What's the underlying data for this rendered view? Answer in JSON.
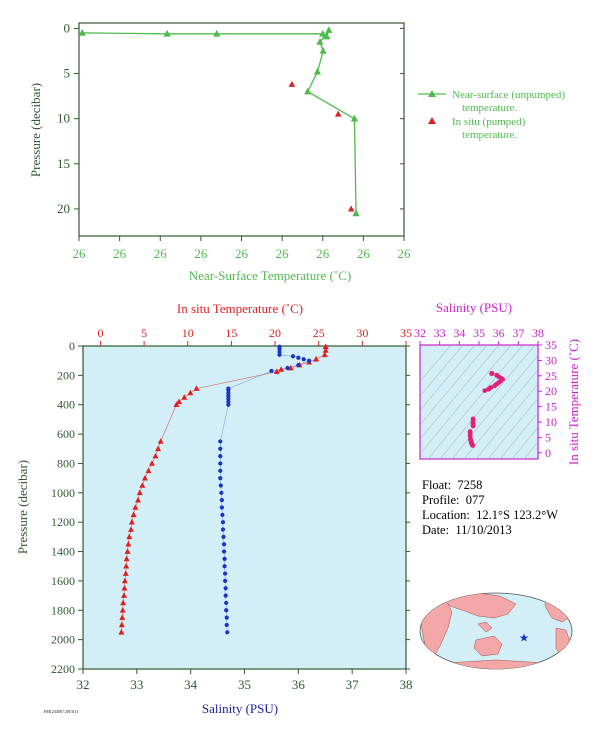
{
  "colors": {
    "green": "#4dbb4d",
    "red": "#e02020",
    "blue": "#1a33cc",
    "magenta": "#cc22cc",
    "navy": "#1a1a99",
    "axis_dark_green": "#2f5a2f",
    "plot_bg": "#d2eef6",
    "map_land": "#f4a7a7",
    "map_ocean": "#d2eef6"
  },
  "float_info": {
    "float_label": "Float:",
    "float_value": "7258",
    "profile_label": "Profile:",
    "profile_value": "077",
    "location_label": "Location:",
    "location_value": "12.1°S  123.2°W",
    "date_label": "Date:",
    "date_value": "11/10/2013"
  },
  "footer_text": "FM1234567 2013111",
  "map": {
    "marker_icon": "star-icon"
  },
  "chart_data": [
    {
      "id": "near-surface",
      "type": "line",
      "xlabel": "Near-Surface Temperature (˚C)",
      "ylabel": "Pressure (decibar)",
      "x_tick_labels": [
        "26",
        "26",
        "26",
        "26",
        "26",
        "26",
        "26",
        "26",
        "26"
      ],
      "xlim": [
        25.1,
        25.9
      ],
      "ylim": [
        23,
        -0.6
      ],
      "y_ticks": [
        0,
        5,
        10,
        15,
        20
      ],
      "y_inverted": true,
      "legend": {
        "placement": "right",
        "entries": [
          {
            "line1": "Near-surface (unpumped)",
            "line2": "temperature.",
            "color": "#4dbb4d",
            "marker": "triangle-line"
          },
          {
            "line1": "In situ (pumped)",
            "line2": "temperature.",
            "color": "#e02020",
            "marker": "triangle"
          }
        ]
      },
      "series": [
        {
          "name": "Near-surface (unpumped) temperature.",
          "color": "#4dbb4d",
          "points": [
            [
              25.108,
              0.5
            ],
            [
              25.317,
              0.6
            ],
            [
              25.439,
              0.6
            ],
            [
              25.7,
              0.6
            ],
            [
              25.71,
              0.9
            ],
            [
              25.715,
              0.2
            ],
            [
              25.693,
              1.5
            ],
            [
              25.701,
              2.5
            ],
            [
              25.687,
              4.8
            ],
            [
              25.663,
              7.0
            ],
            [
              25.778,
              10.0
            ],
            [
              25.782,
              20.5
            ]
          ]
        },
        {
          "name": "In situ (pumped) temperature.",
          "color": "#e02020",
          "points": [
            [
              25.624,
              6.2
            ],
            [
              25.738,
              9.5
            ],
            [
              25.77,
              20.0
            ]
          ]
        }
      ]
    },
    {
      "id": "profile",
      "type": "scatter",
      "top_axis_label": "In situ Temperature (˚C)",
      "top_ticks": [
        0,
        5,
        10,
        15,
        20,
        25,
        30,
        35
      ],
      "top_lim": [
        -2,
        35
      ],
      "bottom_axis_label": "Salinity (PSU)",
      "bottom_ticks": [
        32,
        33,
        34,
        35,
        36,
        37,
        38
      ],
      "bottom_lim": [
        32,
        38
      ],
      "ylabel": "Pressure (decibar)",
      "y_ticks": [
        0,
        200,
        400,
        600,
        800,
        1000,
        1200,
        1400,
        1600,
        1800,
        2000,
        2200
      ],
      "ylim": [
        0,
        2200
      ],
      "y_inverted": true,
      "grid": false,
      "series": [
        {
          "name": "In situ Temperature",
          "color": "#e02020",
          "marker": "triangle",
          "points": [
            [
              25.8,
              5
            ],
            [
              25.8,
              30
            ],
            [
              25.7,
              60
            ],
            [
              24.7,
              90
            ],
            [
              23.9,
              110
            ],
            [
              22.8,
              130
            ],
            [
              21.8,
              150
            ],
            [
              20.7,
              160
            ],
            [
              20.2,
              175
            ],
            [
              11.0,
              290
            ],
            [
              10.3,
              320
            ],
            [
              9.6,
              350
            ],
            [
              9.0,
              380
            ],
            [
              8.7,
              400
            ],
            [
              6.9,
              650
            ],
            [
              6.6,
              700
            ],
            [
              6.3,
              750
            ],
            [
              5.9,
              800
            ],
            [
              5.5,
              850
            ],
            [
              5.1,
              900
            ],
            [
              4.8,
              950
            ],
            [
              4.5,
              1000
            ],
            [
              4.3,
              1050
            ],
            [
              4.0,
              1100
            ],
            [
              3.8,
              1150
            ],
            [
              3.6,
              1200
            ],
            [
              3.5,
              1250
            ],
            [
              3.3,
              1300
            ],
            [
              3.2,
              1350
            ],
            [
              3.1,
              1400
            ],
            [
              3.0,
              1450
            ],
            [
              2.95,
              1500
            ],
            [
              2.9,
              1550
            ],
            [
              2.8,
              1600
            ],
            [
              2.75,
              1650
            ],
            [
              2.7,
              1700
            ],
            [
              2.6,
              1750
            ],
            [
              2.55,
              1800
            ],
            [
              2.5,
              1850
            ],
            [
              2.45,
              1900
            ],
            [
              2.4,
              1950
            ]
          ]
        },
        {
          "name": "Salinity",
          "color": "#1a33cc",
          "marker": "dot",
          "points": [
            [
              35.65,
              5
            ],
            [
              35.65,
              20
            ],
            [
              35.65,
              40
            ],
            [
              35.65,
              60
            ],
            [
              35.9,
              70
            ],
            [
              36.0,
              80
            ],
            [
              36.1,
              90
            ],
            [
              36.2,
              100
            ],
            [
              36.0,
              130
            ],
            [
              35.8,
              150
            ],
            [
              35.5,
              170
            ],
            [
              34.7,
              290
            ],
            [
              34.7,
              300
            ],
            [
              34.7,
              320
            ],
            [
              34.7,
              340
            ],
            [
              34.7,
              360
            ],
            [
              34.7,
              380
            ],
            [
              34.7,
              400
            ],
            [
              34.55,
              650
            ],
            [
              34.55,
              700
            ],
            [
              34.55,
              750
            ],
            [
              34.55,
              800
            ],
            [
              34.55,
              850
            ],
            [
              34.55,
              900
            ],
            [
              34.56,
              950
            ],
            [
              34.57,
              1000
            ],
            [
              34.58,
              1050
            ],
            [
              34.58,
              1100
            ],
            [
              34.59,
              1150
            ],
            [
              34.6,
              1200
            ],
            [
              34.6,
              1250
            ],
            [
              34.61,
              1300
            ],
            [
              34.62,
              1350
            ],
            [
              34.62,
              1400
            ],
            [
              34.63,
              1450
            ],
            [
              34.63,
              1500
            ],
            [
              34.64,
              1550
            ],
            [
              34.64,
              1600
            ],
            [
              34.65,
              1650
            ],
            [
              34.65,
              1700
            ],
            [
              34.66,
              1750
            ],
            [
              34.66,
              1800
            ],
            [
              34.67,
              1850
            ],
            [
              34.67,
              1900
            ],
            [
              34.68,
              1950
            ]
          ]
        }
      ]
    },
    {
      "id": "ts-diagram",
      "type": "scatter",
      "top_axis_label": "Salinity (PSU)",
      "x_ticks": [
        32,
        33,
        34,
        35,
        36,
        37,
        38
      ],
      "xlim": [
        32,
        38
      ],
      "right_axis_label": "In situ Temperature (˚C)",
      "y_ticks": [
        0,
        5,
        10,
        15,
        20,
        25,
        30,
        35
      ],
      "ylim": [
        -2,
        35
      ],
      "series": [
        {
          "name": "T-S",
          "color": "#e0207a",
          "points": [
            [
              35.65,
              25.8
            ],
            [
              35.65,
              25.8
            ],
            [
              35.65,
              25.7
            ],
            [
              35.9,
              25.2
            ],
            [
              36.0,
              24.7
            ],
            [
              36.1,
              24.3
            ],
            [
              36.2,
              23.9
            ],
            [
              36.1,
              23.3
            ],
            [
              36.0,
              22.8
            ],
            [
              35.9,
              22.3
            ],
            [
              35.8,
              21.8
            ],
            [
              35.6,
              21.2
            ],
            [
              35.5,
              20.7
            ],
            [
              35.3,
              20.2
            ],
            [
              34.7,
              11.0
            ],
            [
              34.7,
              10.3
            ],
            [
              34.7,
              9.6
            ],
            [
              34.7,
              9.0
            ],
            [
              34.7,
              8.7
            ],
            [
              34.55,
              6.9
            ],
            [
              34.55,
              6.3
            ],
            [
              34.55,
              5.5
            ],
            [
              34.57,
              4.5
            ],
            [
              34.58,
              4.0
            ],
            [
              34.6,
              3.6
            ],
            [
              34.62,
              3.2
            ],
            [
              34.63,
              3.0
            ],
            [
              34.64,
              2.8
            ],
            [
              34.65,
              2.7
            ],
            [
              34.66,
              2.55
            ],
            [
              34.68,
              2.4
            ]
          ]
        }
      ]
    }
  ]
}
